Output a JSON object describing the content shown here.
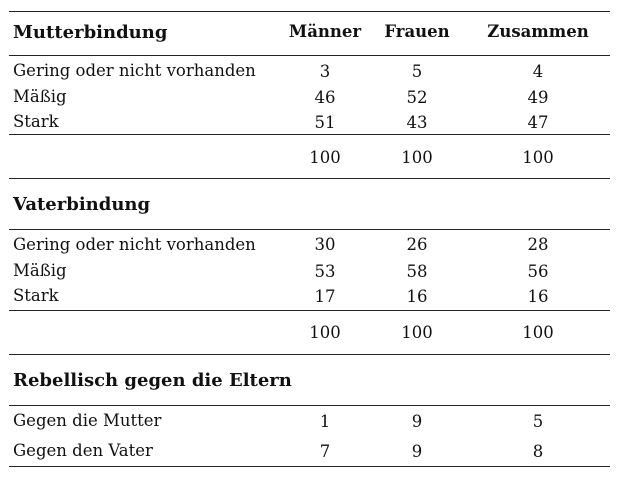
{
  "header": {
    "col0": "Mutterbindung",
    "col1": "Männer",
    "col2": "Frauen",
    "col3": "Zusammen"
  },
  "mutter": {
    "rows": [
      {
        "label": "Gering oder nicht vorhanden",
        "m": "3",
        "f": "5",
        "z": "4"
      },
      {
        "label": "Mäßig",
        "m": "46",
        "f": "52",
        "z": "49"
      },
      {
        "label": "Stark",
        "m": "51",
        "f": "43",
        "z": "47"
      }
    ],
    "total": {
      "m": "100",
      "f": "100",
      "z": "100"
    }
  },
  "vater": {
    "title": "Vaterbindung",
    "rows": [
      {
        "label": "Gering oder nicht vorhanden",
        "m": "30",
        "f": "26",
        "z": "28"
      },
      {
        "label": "Mäßig",
        "m": "53",
        "f": "58",
        "z": "56"
      },
      {
        "label": "Stark",
        "m": "17",
        "f": "16",
        "z": "16"
      }
    ],
    "total": {
      "m": "100",
      "f": "100",
      "z": "100"
    }
  },
  "rebellisch": {
    "title": "Rebellisch gegen die Eltern",
    "rows": [
      {
        "label": "Gegen die Mutter",
        "m": "1",
        "f": "9",
        "z": "5"
      },
      {
        "label": "Gegen den Vater",
        "m": "7",
        "f": "9",
        "z": "8"
      }
    ]
  }
}
